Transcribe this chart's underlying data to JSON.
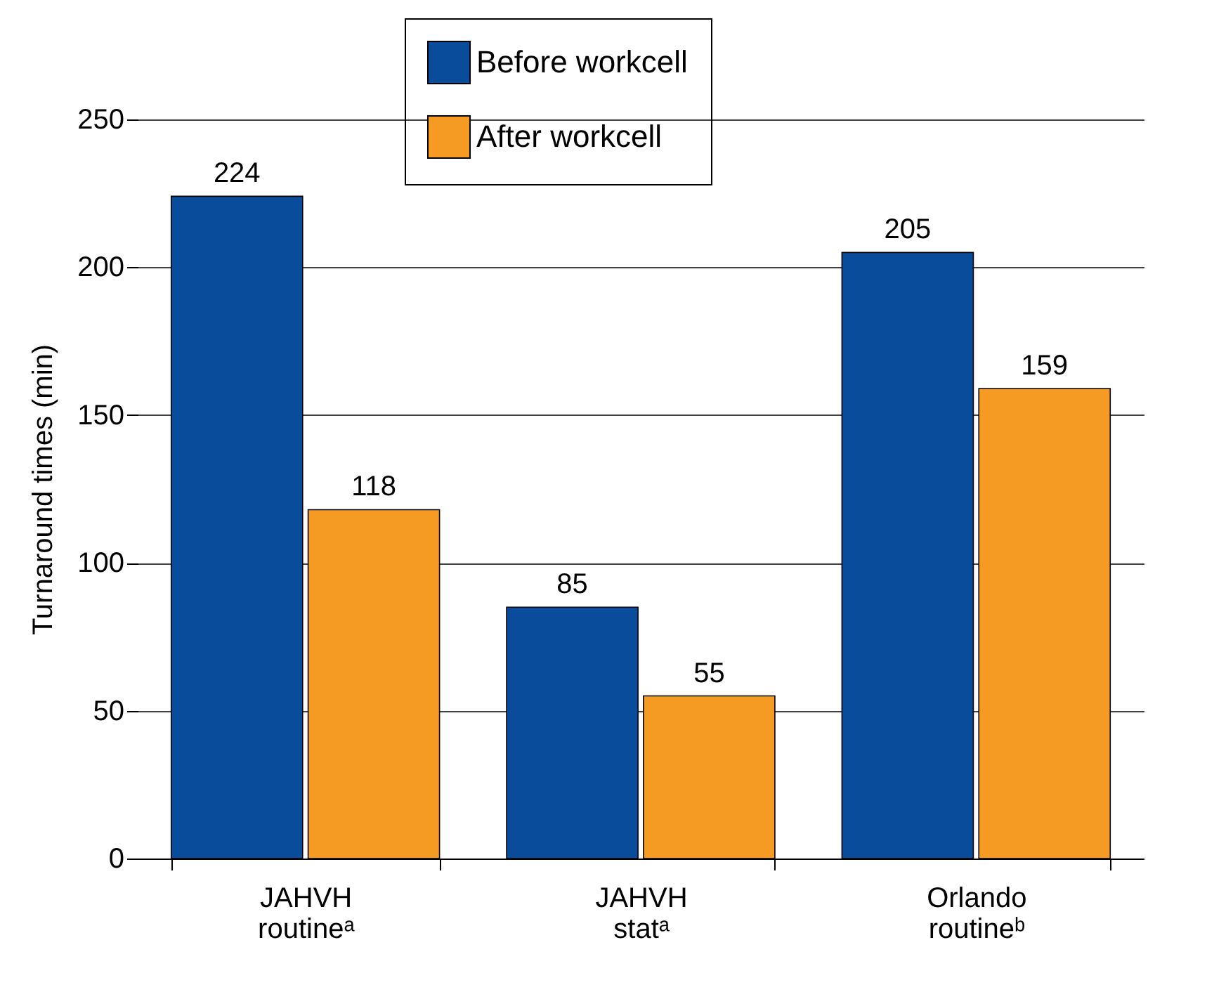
{
  "chart_data": {
    "type": "bar",
    "categories": [
      "JAHVH routineᵃ",
      "JAHVH statᵃ",
      "Orlando routineᵇ"
    ],
    "series": [
      {
        "name": "Before workcell",
        "color": "#0a4c9c",
        "values": [
          224,
          85,
          205
        ]
      },
      {
        "name": "After workcell",
        "color": "#f59a23",
        "values": [
          118,
          55,
          159
        ]
      }
    ],
    "ylabel": "Turnaround times (min)",
    "ylim": [
      0,
      250
    ],
    "yticks": [
      0,
      50,
      100,
      150,
      200,
      250
    ],
    "grid": "y",
    "legend": "top",
    "data_labels": true
  }
}
